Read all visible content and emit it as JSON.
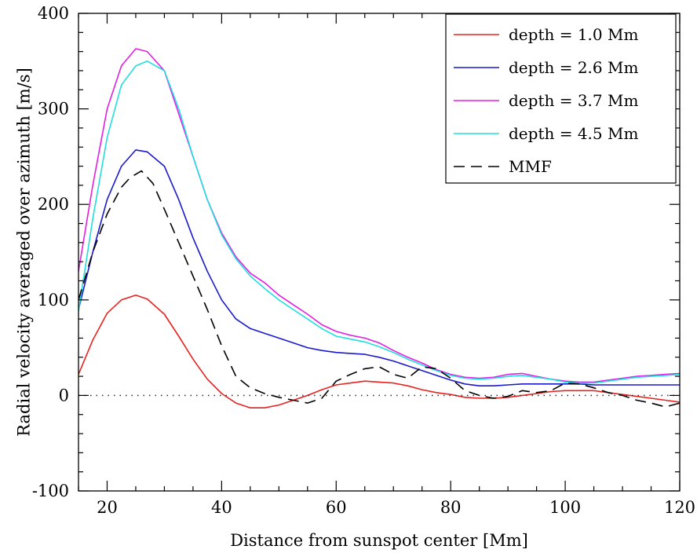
{
  "chart_data": {
    "type": "line",
    "xlabel": "Distance from sunspot center [Mm]",
    "ylabel": "Radial velocity averaged over azimuth [m/s]",
    "xlim": [
      15,
      120
    ],
    "ylim": [
      -100,
      400
    ],
    "x_ticks": [
      20,
      40,
      60,
      80,
      100,
      120
    ],
    "y_ticks": [
      -100,
      0,
      100,
      200,
      300,
      400
    ],
    "x_tick_labels": [
      "20",
      "40",
      "60",
      "80",
      "100",
      "120"
    ],
    "y_tick_labels": [
      "-100",
      "0",
      "100",
      "200",
      "300",
      "400"
    ],
    "grid": false,
    "zero_line": "dotted",
    "legend_position": "top-right",
    "series": [
      {
        "name": "depth = 1.0 Mm",
        "color": "#e8231f",
        "style": "solid",
        "x": [
          15,
          17.5,
          20,
          22.5,
          25,
          27,
          30,
          32.5,
          35,
          37.5,
          40,
          42.5,
          45,
          47.5,
          50,
          52.5,
          55,
          57.5,
          60,
          62.5,
          65,
          67.5,
          70,
          72.5,
          75,
          77.5,
          80,
          82.5,
          85,
          87.5,
          90,
          92.5,
          95,
          97.5,
          100,
          102.5,
          105,
          107.5,
          110,
          112.5,
          115,
          117.5,
          120
        ],
        "y": [
          22,
          58,
          86,
          100,
          105,
          101,
          85,
          62,
          38,
          17,
          2,
          -8,
          -13,
          -13,
          -10,
          -5,
          0,
          6,
          11,
          13,
          15,
          14,
          13,
          10,
          6,
          3,
          1,
          -2,
          -3,
          -3,
          -2,
          0,
          2,
          4,
          5,
          5,
          5,
          3,
          1,
          -1,
          -3,
          -5,
          -7
        ]
      },
      {
        "name": "depth = 2.6 Mm",
        "color": "#1a1acd",
        "style": "solid",
        "x": [
          15,
          17.5,
          20,
          22.5,
          25,
          27,
          30,
          32.5,
          35,
          37.5,
          40,
          42.5,
          45,
          47.5,
          50,
          52.5,
          55,
          57.5,
          60,
          62.5,
          65,
          67.5,
          70,
          72.5,
          75,
          77.5,
          80,
          82.5,
          85,
          87.5,
          90,
          92.5,
          95,
          97.5,
          100,
          102.5,
          105,
          107.5,
          110,
          112.5,
          115,
          117.5,
          120
        ],
        "y": [
          90,
          150,
          205,
          240,
          257,
          255,
          240,
          205,
          165,
          130,
          100,
          80,
          70,
          65,
          60,
          55,
          50,
          47,
          45,
          44,
          43,
          40,
          36,
          31,
          26,
          21,
          16,
          12,
          10,
          10,
          11,
          12,
          12,
          12,
          12,
          12,
          11,
          11,
          11,
          11,
          11,
          11,
          11
        ]
      },
      {
        "name": "depth = 3.7 Mm",
        "color": "#e21fe2",
        "style": "solid",
        "x": [
          15,
          17.5,
          20,
          22.5,
          25,
          27,
          30,
          32.5,
          35,
          37.5,
          40,
          42.5,
          45,
          47.5,
          50,
          52.5,
          55,
          57.5,
          60,
          62.5,
          65,
          67.5,
          70,
          72.5,
          75,
          77.5,
          80,
          82.5,
          85,
          87.5,
          90,
          92.5,
          95,
          97.5,
          100,
          102.5,
          105,
          107.5,
          110,
          112.5,
          115,
          117.5,
          120
        ],
        "y": [
          130,
          220,
          300,
          345,
          363,
          360,
          340,
          295,
          250,
          205,
          170,
          145,
          128,
          118,
          105,
          95,
          85,
          74,
          67,
          63,
          60,
          55,
          47,
          40,
          34,
          27,
          22,
          19,
          18,
          19,
          22,
          23,
          20,
          17,
          15,
          14,
          14,
          16,
          18,
          20,
          21,
          22,
          23
        ]
      },
      {
        "name": "depth = 4.5 Mm",
        "color": "#20dede",
        "style": "solid",
        "x": [
          15,
          17.5,
          20,
          22.5,
          25,
          27,
          30,
          32.5,
          35,
          37.5,
          40,
          42.5,
          45,
          47.5,
          50,
          52.5,
          55,
          57.5,
          60,
          62.5,
          65,
          67.5,
          70,
          72.5,
          75,
          77.5,
          80,
          82.5,
          85,
          87.5,
          90,
          92.5,
          95,
          97.5,
          100,
          102.5,
          105,
          107.5,
          110,
          112.5,
          115,
          117.5,
          120
        ],
        "y": [
          88,
          185,
          270,
          325,
          345,
          350,
          340,
          300,
          250,
          205,
          168,
          143,
          125,
          112,
          100,
          90,
          80,
          70,
          62,
          59,
          56,
          51,
          45,
          38,
          32,
          26,
          21,
          18,
          17,
          18,
          20,
          21,
          19,
          17,
          14,
          13,
          13,
          15,
          17,
          19,
          20,
          21,
          22
        ]
      },
      {
        "name": "MMF",
        "color": "#000000",
        "style": "dashed",
        "x": [
          15,
          17.5,
          20,
          22.5,
          24,
          26,
          28,
          30,
          32.5,
          35,
          37.5,
          40,
          42.5,
          45,
          47.5,
          50,
          52.5,
          55,
          57.5,
          60,
          62.5,
          65,
          67.5,
          70,
          72.5,
          75,
          77.5,
          80,
          82.5,
          85,
          87.5,
          90,
          92.5,
          95,
          97.5,
          100,
          102.5,
          105,
          107.5,
          110,
          112.5,
          115,
          117.5,
          120
        ],
        "y": [
          100,
          150,
          190,
          218,
          228,
          235,
          222,
          195,
          160,
          125,
          90,
          52,
          20,
          8,
          2,
          -2,
          -5,
          -8,
          -3,
          15,
          22,
          28,
          30,
          22,
          18,
          30,
          28,
          18,
          5,
          0,
          -3,
          -1,
          5,
          3,
          5,
          13,
          12,
          8,
          3,
          0,
          -5,
          -8,
          -12,
          -8
        ]
      }
    ]
  }
}
